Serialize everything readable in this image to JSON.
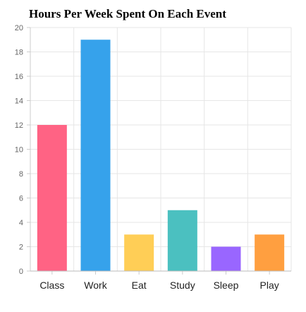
{
  "chart_data": {
    "type": "bar",
    "title": "Hours Per Week Spent On Each Event",
    "categories": [
      "Class",
      "Work",
      "Eat",
      "Study",
      "Sleep",
      "Play"
    ],
    "values": [
      12,
      19,
      3,
      5,
      2,
      3
    ],
    "colors": [
      "#ff6384",
      "#36a2eb",
      "#ffce56",
      "#4bc0c0",
      "#9966ff",
      "#ff9f40"
    ],
    "xlabel": "",
    "ylabel": "",
    "ylim": [
      0,
      20
    ],
    "ytick_step": 2,
    "grid": true,
    "legend": "none"
  }
}
